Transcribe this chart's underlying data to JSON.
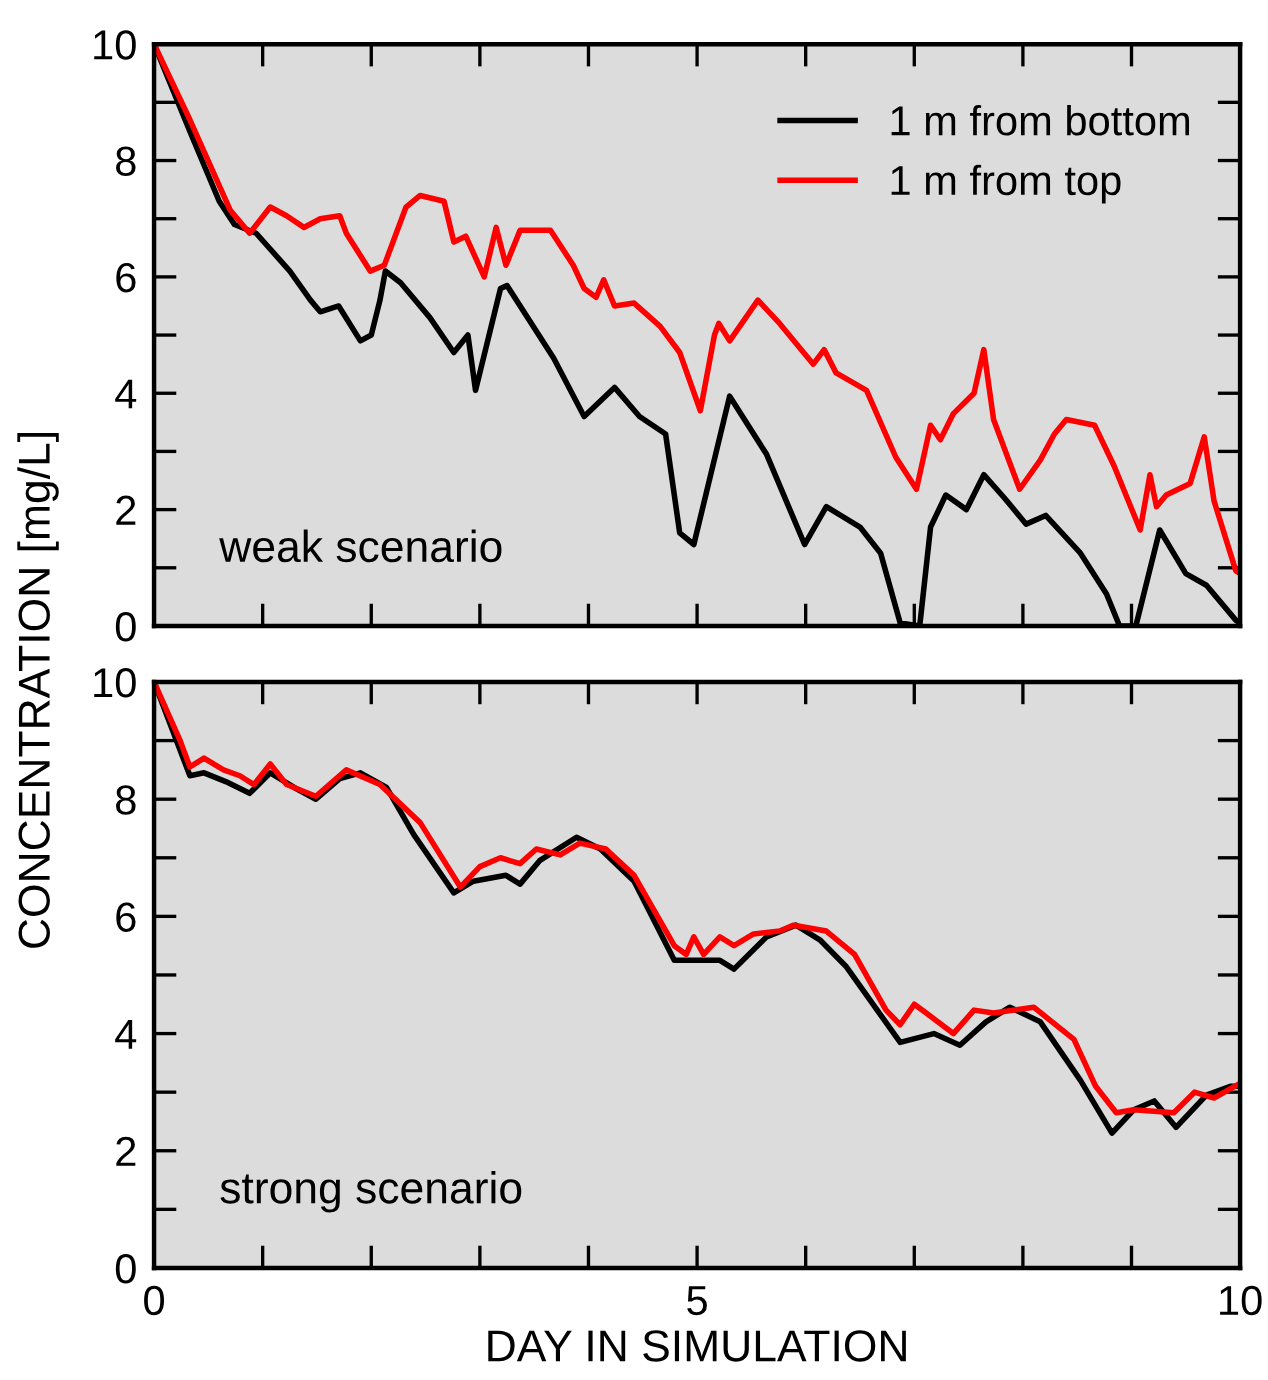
{
  "chart_data": [
    {
      "type": "line",
      "ylabel": "CONCENTRATION [mg/L]",
      "annotations": [
        "weak scenario"
      ],
      "legend": "top right",
      "grid": false,
      "tick_labels": "y",
      "marker": "none",
      "line_style": "solid",
      "xlim": [
        0,
        10
      ],
      "ylim": [
        0,
        10
      ],
      "xticks": [
        {
          "value": 0,
          "label": null
        },
        {
          "value": 1,
          "label": null
        },
        {
          "value": 2,
          "label": null
        },
        {
          "value": 3,
          "label": null
        },
        {
          "value": 4,
          "label": null
        },
        {
          "value": 5,
          "label": null
        },
        {
          "value": 6,
          "label": null
        },
        {
          "value": 7,
          "label": null
        },
        {
          "value": 8,
          "label": null
        },
        {
          "value": 9,
          "label": null
        },
        {
          "value": 10,
          "label": null
        }
      ],
      "yticks": [
        0,
        {
          "value": 1,
          "label": null
        },
        2,
        {
          "value": 3,
          "label": null
        },
        4,
        {
          "value": 5,
          "label": null
        },
        6,
        {
          "value": 7,
          "label": null
        },
        8,
        {
          "value": 9,
          "label": null
        },
        10
      ],
      "series": [
        {
          "name": "1 m from bottom",
          "color": "#000000",
          "x": [
            0,
            0.33,
            0.6,
            0.74,
            0.94,
            1.25,
            1.44,
            1.53,
            1.7,
            1.9,
            2.0,
            2.08,
            2.13,
            2.27,
            2.54,
            2.76,
            2.89,
            2.96,
            3.19,
            3.25,
            3.68,
            3.96,
            4.24,
            4.47,
            4.71,
            4.84,
            4.97,
            5.3,
            5.64,
            5.99,
            6.19,
            6.5,
            6.69,
            6.87,
            7.05,
            7.15,
            7.29,
            7.48,
            7.64,
            7.83,
            8.03,
            8.21,
            8.53,
            8.77,
            8.89,
            9.04,
            9.26,
            9.5,
            9.69,
            9.96,
            10
          ],
          "values": [
            10,
            8.5,
            7.3,
            6.9,
            6.75,
            6.1,
            5.6,
            5.4,
            5.5,
            4.9,
            5.0,
            5.6,
            6.1,
            5.9,
            5.3,
            4.7,
            5.0,
            4.05,
            5.8,
            5.85,
            4.6,
            3.6,
            4.1,
            3.6,
            3.3,
            1.6,
            1.4,
            3.95,
            2.95,
            1.4,
            2.05,
            1.7,
            1.25,
            0.05,
            0,
            1.7,
            2.25,
            2.0,
            2.6,
            2.2,
            1.75,
            1.9,
            1.25,
            0.55,
            0,
            0,
            1.65,
            0.9,
            0.7,
            0.1,
            0.05
          ]
        },
        {
          "name": "1 m from top",
          "color": "#ff0000",
          "x": [
            0,
            0.33,
            0.7,
            0.88,
            1.07,
            1.22,
            1.38,
            1.53,
            1.71,
            1.77,
            1.99,
            2.12,
            2.32,
            2.45,
            2.67,
            2.76,
            2.87,
            3.04,
            3.15,
            3.24,
            3.37,
            3.65,
            3.86,
            3.96,
            4.07,
            4.14,
            4.24,
            4.42,
            4.66,
            4.84,
            5.03,
            5.16,
            5.2,
            5.3,
            5.56,
            5.76,
            6.07,
            6.17,
            6.28,
            6.56,
            6.83,
            7.02,
            7.15,
            7.24,
            7.36,
            7.55,
            7.64,
            7.73,
            7.97,
            8.16,
            8.29,
            8.4,
            8.66,
            8.84,
            9.08,
            9.17,
            9.23,
            9.32,
            9.54,
            9.67,
            9.76,
            9.96,
            10
          ],
          "values": [
            10,
            8.7,
            7.15,
            6.75,
            7.2,
            7.05,
            6.85,
            7.0,
            7.05,
            6.75,
            6.1,
            6.2,
            7.2,
            7.4,
            7.3,
            6.6,
            6.7,
            6.0,
            6.85,
            6.2,
            6.8,
            6.8,
            6.2,
            5.8,
            5.65,
            5.95,
            5.5,
            5.55,
            5.15,
            4.7,
            3.7,
            5.0,
            5.2,
            4.9,
            5.6,
            5.2,
            4.5,
            4.75,
            4.35,
            4.05,
            2.9,
            2.35,
            3.45,
            3.2,
            3.65,
            4.0,
            4.75,
            3.55,
            2.35,
            2.85,
            3.3,
            3.55,
            3.45,
            2.75,
            1.65,
            2.6,
            2.05,
            2.25,
            2.45,
            3.25,
            2.15,
            0.95,
            0.9
          ]
        }
      ]
    },
    {
      "type": "line",
      "xlabel": "DAY IN SIMULATION",
      "annotations": [
        "strong scenario"
      ],
      "grid": false,
      "marker": "none",
      "line_style": "solid",
      "xlim": [
        0,
        10
      ],
      "ylim": [
        0,
        10
      ],
      "xticks": [
        0,
        {
          "value": 1,
          "label": null
        },
        {
          "value": 2,
          "label": null
        },
        {
          "value": 3,
          "label": null
        },
        {
          "value": 4,
          "label": null
        },
        5,
        {
          "value": 6,
          "label": null
        },
        {
          "value": 7,
          "label": null
        },
        {
          "value": 8,
          "label": null
        },
        {
          "value": 9,
          "label": null
        },
        10
      ],
      "yticks": [
        0,
        {
          "value": 1,
          "label": null
        },
        2,
        {
          "value": 3,
          "label": null
        },
        4,
        {
          "value": 5,
          "label": null
        },
        6,
        {
          "value": 7,
          "label": null
        },
        8,
        {
          "value": 9,
          "label": null
        },
        10
      ],
      "series": [
        {
          "color": "#000000",
          "x": [
            0,
            0.33,
            0.46,
            0.66,
            0.88,
            1.07,
            1.29,
            1.49,
            1.71,
            1.9,
            2.14,
            2.39,
            2.76,
            2.94,
            3.24,
            3.37,
            3.55,
            3.89,
            4.11,
            4.42,
            4.79,
            5.21,
            5.34,
            5.64,
            5.91,
            6.13,
            6.37,
            6.87,
            7.18,
            7.42,
            7.66,
            7.88,
            8.16,
            8.53,
            8.82,
            9.02,
            9.21,
            9.41,
            9.69,
            9.91,
            10
          ],
          "values": [
            10,
            8.4,
            8.45,
            8.3,
            8.1,
            8.45,
            8.2,
            8.0,
            8.35,
            8.45,
            8.2,
            7.4,
            6.4,
            6.6,
            6.7,
            6.55,
            6.95,
            7.35,
            7.15,
            6.6,
            5.25,
            5.25,
            5.1,
            5.65,
            5.85,
            5.6,
            5.15,
            3.85,
            4.0,
            3.8,
            4.2,
            4.45,
            4.2,
            3.2,
            2.3,
            2.7,
            2.85,
            2.4,
            2.95,
            3.1,
            3.1
          ]
        },
        {
          "color": "#ff0000",
          "x": [
            0,
            0.24,
            0.33,
            0.46,
            0.64,
            0.79,
            0.92,
            1.07,
            1.22,
            1.49,
            1.77,
            2.08,
            2.45,
            2.82,
            3.0,
            3.19,
            3.37,
            3.52,
            3.74,
            3.92,
            4.16,
            4.42,
            4.79,
            4.9,
            4.97,
            5.06,
            5.21,
            5.34,
            5.52,
            5.76,
            5.89,
            6.19,
            6.45,
            6.74,
            6.87,
            7.0,
            7.11,
            7.36,
            7.55,
            7.73,
            8.1,
            8.47,
            8.67,
            8.86,
            9.02,
            9.39,
            9.58,
            9.76,
            10
          ],
          "values": [
            10,
            9.0,
            8.55,
            8.7,
            8.5,
            8.4,
            8.25,
            8.6,
            8.25,
            8.05,
            8.5,
            8.25,
            7.6,
            6.5,
            6.85,
            7.0,
            6.9,
            7.15,
            7.05,
            7.25,
            7.15,
            6.7,
            5.5,
            5.35,
            5.65,
            5.35,
            5.65,
            5.5,
            5.7,
            5.75,
            5.85,
            5.75,
            5.35,
            4.4,
            4.15,
            4.5,
            4.35,
            4.0,
            4.4,
            4.35,
            4.45,
            3.9,
            3.1,
            2.65,
            2.7,
            2.65,
            3.0,
            2.9,
            3.15
          ]
        }
      ]
    }
  ]
}
